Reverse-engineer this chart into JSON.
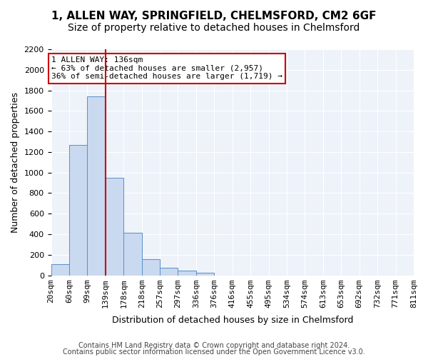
{
  "title_line1": "1, ALLEN WAY, SPRINGFIELD, CHELMSFORD, CM2 6GF",
  "title_line2": "Size of property relative to detached houses in Chelmsford",
  "xlabel": "Distribution of detached houses by size in Chelmsford",
  "ylabel": "Number of detached properties",
  "bar_values": [
    110,
    1270,
    1740,
    950,
    415,
    155,
    75,
    45,
    25,
    0,
    0,
    0,
    0,
    0,
    0,
    0,
    0,
    0,
    0,
    0
  ],
  "bin_labels": [
    "20sqm",
    "60sqm",
    "99sqm",
    "139sqm",
    "178sqm",
    "218sqm",
    "257sqm",
    "297sqm",
    "336sqm",
    "376sqm",
    "416sqm",
    "455sqm",
    "495sqm",
    "534sqm",
    "574sqm",
    "613sqm",
    "653sqm",
    "692sqm",
    "732sqm",
    "771sqm",
    "811sqm"
  ],
  "bar_color": "#c9d9f0",
  "bar_edge_color": "#5a8fc8",
  "vline_x": 3,
  "vline_color": "#cc0000",
  "annotation_text": "1 ALLEN WAY: 136sqm\n← 63% of detached houses are smaller (2,957)\n36% of semi-detached houses are larger (1,719) →",
  "annotation_box_color": "#ffffff",
  "annotation_box_edge": "#cc0000",
  "ylim": [
    0,
    2200
  ],
  "yticks": [
    0,
    200,
    400,
    600,
    800,
    1000,
    1200,
    1400,
    1600,
    1800,
    2000,
    2200
  ],
  "bg_color": "#eef2f9",
  "footer_line1": "Contains HM Land Registry data © Crown copyright and database right 2024.",
  "footer_line2": "Contains public sector information licensed under the Open Government Licence v3.0.",
  "title_fontsize": 11,
  "subtitle_fontsize": 10,
  "axis_label_fontsize": 9,
  "tick_fontsize": 8,
  "annotation_fontsize": 8,
  "footer_fontsize": 7
}
